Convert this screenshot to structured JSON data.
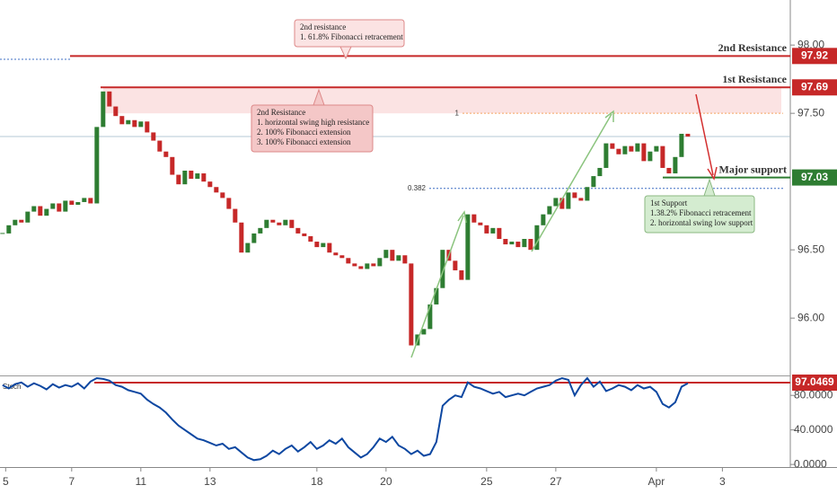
{
  "chart_data": [
    {
      "type": "candlestick",
      "values": [
        96.62,
        96.68,
        96.72,
        96.7,
        96.78,
        96.82,
        96.75,
        96.8,
        96.84,
        96.78,
        96.86,
        96.83,
        96.85,
        96.88,
        96.84,
        97.4,
        97.66,
        97.55,
        97.48,
        97.42,
        97.45,
        97.4,
        97.44,
        97.36,
        97.3,
        97.22,
        97.18,
        97.05,
        96.98,
        97.08,
        97.02,
        97.06,
        97.0,
        96.96,
        96.92,
        96.88,
        96.8,
        96.7,
        96.48,
        96.55,
        96.62,
        96.66,
        96.72,
        96.7,
        96.68,
        96.72,
        96.66,
        96.62,
        96.6,
        96.56,
        96.52,
        96.55,
        96.48,
        96.46,
        96.44,
        96.4,
        96.38,
        96.36,
        96.4,
        96.38,
        96.44,
        96.5,
        96.42,
        96.46,
        96.4,
        95.8,
        95.88,
        95.92,
        96.1,
        96.22,
        96.5,
        96.42,
        96.35,
        96.28,
        96.76,
        96.7,
        96.68,
        96.62,
        96.66,
        96.58,
        96.54,
        96.56,
        96.52,
        96.58,
        96.5,
        96.68,
        96.76,
        96.82,
        96.88,
        96.8,
        96.92,
        96.88,
        96.86,
        96.96,
        97.04,
        97.1,
        97.28,
        97.24,
        97.2,
        97.26,
        97.22,
        97.28,
        97.15,
        97.22,
        97.26,
        97.1,
        97.06,
        97.18,
        97.35,
        97.33
      ],
      "up_color": "#2e7d32",
      "down_color": "#c62828",
      "xlim": [
        -0.4,
        125.3
      ],
      "xticks": [
        {
          "value": 0.5,
          "label": "5"
        },
        {
          "value": 11,
          "label": "7"
        },
        {
          "value": 22,
          "label": "11"
        },
        {
          "value": 33,
          "label": "13"
        },
        {
          "value": 50,
          "label": "18"
        },
        {
          "value": 61,
          "label": "20"
        },
        {
          "value": 77,
          "label": "25"
        },
        {
          "value": 88,
          "label": "27"
        },
        {
          "value": 104,
          "label": "Apr"
        },
        {
          "value": 114.5,
          "label": "3"
        }
      ],
      "ylim": [
        95.58,
        98.33
      ],
      "yticks": [
        {
          "value": 98,
          "label": "98.00"
        },
        {
          "value": 97.5,
          "label": "97.50"
        },
        {
          "value": 96.5,
          "label": "96.50"
        },
        {
          "value": 96,
          "label": "96.00"
        }
      ],
      "levels": [
        {
          "name": "2nd Resistance",
          "value": 97.92,
          "color": "#c62828"
        },
        {
          "name": "1st Resistance",
          "value": 97.69,
          "color": "#c62828"
        },
        {
          "name": "Major support",
          "value": 97.03,
          "color": "#2e7d32"
        }
      ],
      "zone": [
        97.5,
        97.69
      ],
      "fib": [
        {
          "label": "1",
          "value": 97.5,
          "color": "#f4a460"
        },
        {
          "label": "0.382",
          "value": 96.95,
          "color": "#3f6fc4"
        }
      ],
      "annotations": [
        {
          "lines": [
            "2nd resistance",
            "1. 61.8% Fibonacci retracement"
          ]
        },
        {
          "lines": [
            "2nd Resistance",
            "1.  horizontal swing high resistance",
            "2. 100% Fibonacci extension",
            "3. 100% Fibonacci extension"
          ]
        },
        {
          "lines": [
            "1st Support",
            "1.38.2% Fibonacci retracement",
            "2. horizontal swing low  support"
          ]
        }
      ]
    },
    {
      "type": "line",
      "title": "Stoch",
      "color": "#0d47a1",
      "level_label": "97.0469",
      "values": [
        92,
        88,
        93,
        95,
        90,
        94,
        91,
        87,
        93,
        89,
        92,
        90,
        94,
        88,
        96,
        100,
        99,
        97,
        92,
        90,
        86,
        84,
        82,
        75,
        70,
        66,
        60,
        52,
        45,
        40,
        35,
        30,
        28,
        25,
        22,
        24,
        18,
        20,
        14,
        8,
        5,
        6,
        10,
        16,
        12,
        18,
        22,
        15,
        20,
        26,
        18,
        22,
        28,
        24,
        30,
        20,
        14,
        8,
        12,
        20,
        30,
        26,
        32,
        22,
        18,
        12,
        16,
        10,
        12,
        26,
        68,
        75,
        80,
        78,
        95,
        90,
        88,
        85,
        82,
        84,
        78,
        80,
        82,
        80,
        84,
        88,
        90,
        92,
        97,
        100,
        98,
        80,
        92,
        100,
        90,
        96,
        85,
        88,
        92,
        90,
        86,
        92,
        88,
        90,
        84,
        70,
        66,
        72,
        90,
        94
      ],
      "ylim": [
        -3,
        101
      ],
      "yticks": [
        {
          "value": 80,
          "label": "80.0000"
        },
        {
          "value": 40,
          "label": "40.0000"
        },
        {
          "value": 0,
          "label": "0.0000"
        }
      ]
    }
  ]
}
